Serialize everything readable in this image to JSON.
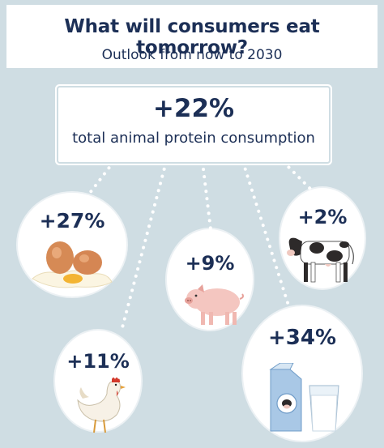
{
  "header": {
    "title": "What will consumers eat tomorrow?",
    "subtitle": "Outlook from now to 2030"
  },
  "total": {
    "value": "+22%",
    "label": "total animal protein consumption"
  },
  "items": [
    {
      "id": "eggs",
      "value": "+27%",
      "icon": "eggs-icon"
    },
    {
      "id": "pork",
      "value": "+9%",
      "icon": "pig-icon"
    },
    {
      "id": "beef",
      "value": "+2%",
      "icon": "cow-icon"
    },
    {
      "id": "poultry",
      "value": "+11%",
      "icon": "chicken-icon"
    },
    {
      "id": "dairy",
      "value": "+34%",
      "icon": "milk-icon"
    }
  ],
  "colors": {
    "background": "#cfdde3",
    "text": "#1c2f56",
    "panel": "#ffffff"
  }
}
